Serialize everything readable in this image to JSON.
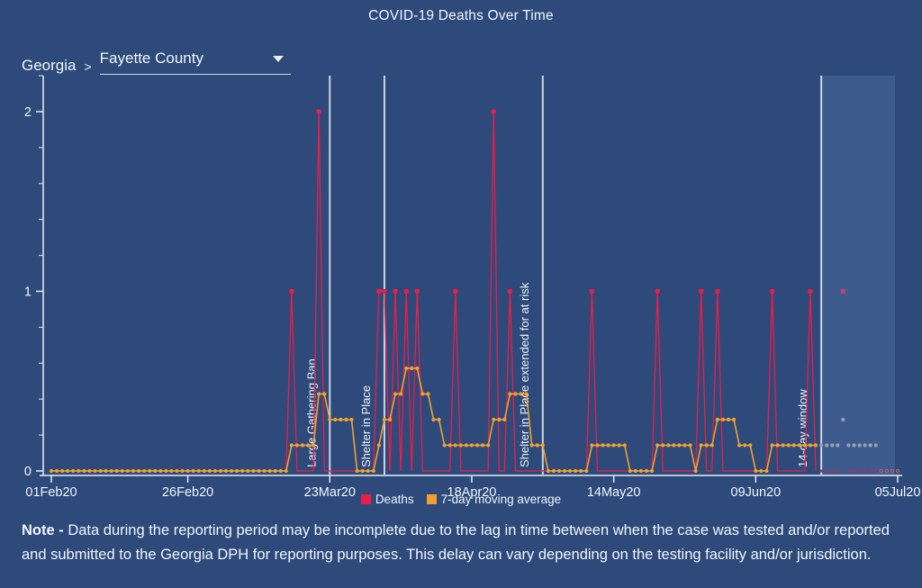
{
  "page": {
    "background": "#2d4a7b",
    "text_color": "#f2f5f9"
  },
  "title": "COVID-19 Deaths Over Time",
  "breadcrumb": {
    "state": "Georgia",
    "separator": ">",
    "selected_county": "Fayette County"
  },
  "legend": {
    "items": [
      {
        "label": "Deaths",
        "color": "#ee1c48"
      },
      {
        "label": "7-day moving average",
        "color": "#f0a22e"
      }
    ]
  },
  "note": {
    "prefix": "Note -",
    "body": " Data during the reporting period may be incomplete due to the lag in time between when the case was tested and/or reported and submitted to the Georgia DPH for reporting purposes. This delay can vary depending on the testing facility and/or jurisdiction."
  },
  "chart_data": {
    "type": "line",
    "title": "COVID-19 Deaths Over Time",
    "x_start_date": "2020-02-01",
    "x_end_date": "2020-07-05",
    "days_total": 156,
    "x_ticks": [
      {
        "label": "01Feb20",
        "day": 0
      },
      {
        "label": "26Feb20",
        "day": 25
      },
      {
        "label": "23Mar20",
        "day": 51
      },
      {
        "label": "18Apr20",
        "day": 77
      },
      {
        "label": "14May20",
        "day": 103
      },
      {
        "label": "09Jun20",
        "day": 129
      },
      {
        "label": "05Jul20",
        "day": 155
      }
    ],
    "y_ticks": [
      0,
      1,
      2
    ],
    "y_minor_tick_step": 0.2,
    "ylim": [
      0,
      2.2
    ],
    "grid": false,
    "legend_position": "bottom-center",
    "series": [
      {
        "name": "Deaths",
        "color": "#ee1c48",
        "style": "daily spikes with point markers",
        "default_value_other_days": 0,
        "events": [
          {
            "date": "2020-03-16",
            "day": 44,
            "value": 1
          },
          {
            "date": "2020-03-21",
            "day": 49,
            "value": 2
          },
          {
            "date": "2020-04-01",
            "day": 60,
            "value": 1
          },
          {
            "date": "2020-04-02",
            "day": 61,
            "value": 1
          },
          {
            "date": "2020-04-04",
            "day": 63,
            "value": 1
          },
          {
            "date": "2020-04-06",
            "day": 65,
            "value": 1
          },
          {
            "date": "2020-04-08",
            "day": 67,
            "value": 1
          },
          {
            "date": "2020-04-15",
            "day": 74,
            "value": 1
          },
          {
            "date": "2020-04-22",
            "day": 81,
            "value": 2
          },
          {
            "date": "2020-04-25",
            "day": 84,
            "value": 1
          },
          {
            "date": "2020-05-10",
            "day": 99,
            "value": 1
          },
          {
            "date": "2020-05-22",
            "day": 111,
            "value": 1
          },
          {
            "date": "2020-05-30",
            "day": 119,
            "value": 1
          },
          {
            "date": "2020-06-02",
            "day": 122,
            "value": 1
          },
          {
            "date": "2020-06-12",
            "day": 132,
            "value": 1
          },
          {
            "date": "2020-06-19",
            "day": 139,
            "value": 1
          },
          {
            "date": "2020-06-25",
            "day": 145,
            "value": 1
          }
        ]
      },
      {
        "name": "7-day moving average",
        "color": "#f0a22e",
        "style": "dotted line, one dot per day",
        "derived_from": "Deaths",
        "method": "trailing 7-day mean (inclusive of current day)",
        "window_days": 7
      }
    ],
    "event_lines": [
      {
        "label": "Large Gathering Ban",
        "date": "2020-03-23",
        "day": 51
      },
      {
        "label": "Shelter in Place",
        "date": "2020-04-02",
        "day": 61
      },
      {
        "label": "Shelter in Place extended for at risk",
        "date": "2020-05-01",
        "day": 90
      },
      {
        "label": "14-day window",
        "date": "2020-06-21",
        "day": 141
      }
    ],
    "reporting_window": {
      "label": "14-day window",
      "start_date": "2020-06-21",
      "start_day": 141,
      "end_day": 155,
      "bg_color": "#3e5b8e",
      "muted_deaths_color": "#a43458",
      "muted_death_dot_color": "#c04468",
      "muted_ma_dot_color": "#97a2b0"
    },
    "colors": {
      "axis": "#e8ecf1",
      "event_line": "#d7dde6",
      "event_label": "#eef2f7"
    }
  }
}
